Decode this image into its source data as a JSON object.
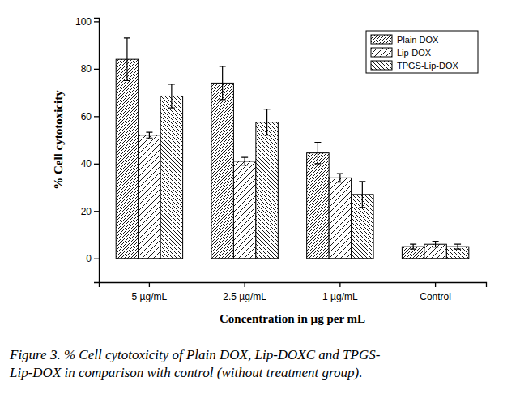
{
  "chart_data": {
    "type": "bar",
    "x_label": "Concentration in µg per mL",
    "y_label": "% Cell cytotoxicity",
    "caption": [
      "Figure 3. % Cell cytotoxicity of Plain DOX, Lip-DOXC and TPGS-",
      "Lip-DOX in comparison with control (without treatment group)."
    ],
    "categories": [
      "5 µg/mL",
      "2.5 µg/mL",
      "1 µg/mL",
      "Control"
    ],
    "series": [
      {
        "name": "Plain DOX",
        "color": "#000000",
        "values": [
          84,
          74,
          44.5,
          5
        ],
        "errors": [
          9,
          7,
          4.5,
          1
        ]
      },
      {
        "name": "Lip-DOX",
        "color": "#000000",
        "values": [
          52,
          41,
          34,
          6
        ],
        "errors": [
          1.2,
          1.6,
          1.8,
          1.2
        ]
      },
      {
        "name": "TPGS-Lip-DOX",
        "color": "#000000",
        "values": [
          68.5,
          57.5,
          27,
          5
        ],
        "errors": [
          5,
          5.5,
          5.5,
          1
        ]
      }
    ],
    "ylim": [
      -10,
      101.5
    ],
    "yticks": [
      0,
      20,
      40,
      60,
      80,
      100
    ],
    "legend": "upper right",
    "grid": false
  }
}
